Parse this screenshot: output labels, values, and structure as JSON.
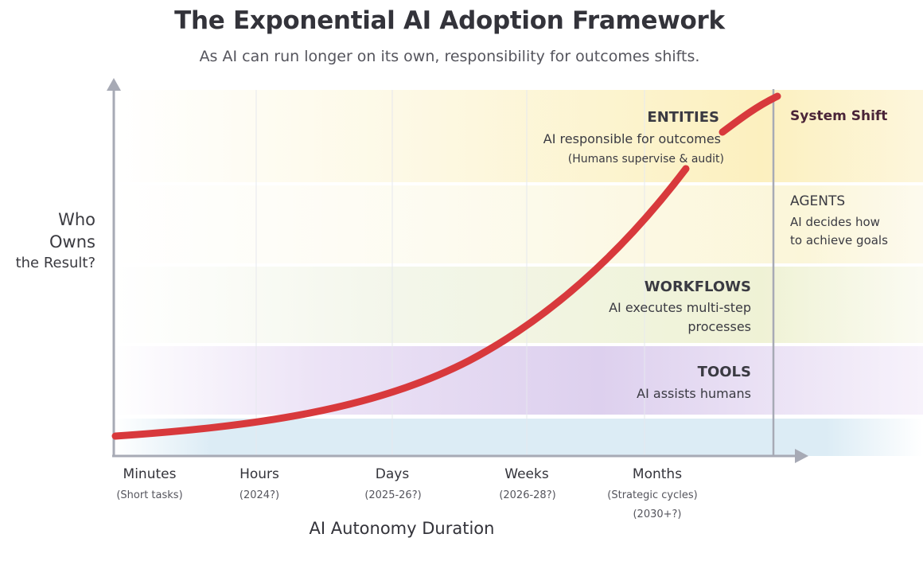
{
  "title": "The Exponential AI Adoption Framework",
  "subtitle": "As AI can run longer on its own, responsibility for outcomes shifts.",
  "y_axis_label": [
    "Who",
    "Owns",
    "the Result?"
  ],
  "x_axis_label": "AI Autonomy Duration",
  "bands": {
    "entities": {
      "title": "ENTITIES",
      "desc": "AI responsible for outcomes",
      "note": "(Humans supervise & audit)"
    },
    "agents": {
      "title": "AGENTS",
      "desc": [
        "AI decides how",
        "to achieve goals"
      ]
    },
    "workflows": {
      "title": "WORKFLOWS",
      "desc": [
        "AI executes multi-step",
        "processes"
      ]
    },
    "tools": {
      "title": "TOOLS",
      "desc": "AI assists humans"
    }
  },
  "system_shift": "System Shift",
  "x_ticks": [
    {
      "label": "Minutes",
      "sub": [
        "(Short tasks)"
      ]
    },
    {
      "label": "Hours",
      "sub": [
        "(2024?)"
      ]
    },
    {
      "label": "Days",
      "sub": [
        "(2025-26?)"
      ]
    },
    {
      "label": "Weeks",
      "sub": [
        "(2026-28?)"
      ]
    },
    {
      "label": "Months",
      "sub": [
        "(Strategic cycles)",
        "(2030+?)"
      ]
    }
  ],
  "colors": {
    "curve": "#d8393c",
    "axis": "#a7aab5",
    "tools_band": "#ddd0ee",
    "workflows_band": "#f1f3d6",
    "agents_band": "#fbf7dc",
    "entities_band": "#fcf2c4",
    "base_band": "#dcecf5"
  },
  "chart_data": {
    "type": "line",
    "x": [
      "Minutes",
      "Hours",
      "Days",
      "Weeks",
      "Months"
    ],
    "series": []
  }
}
